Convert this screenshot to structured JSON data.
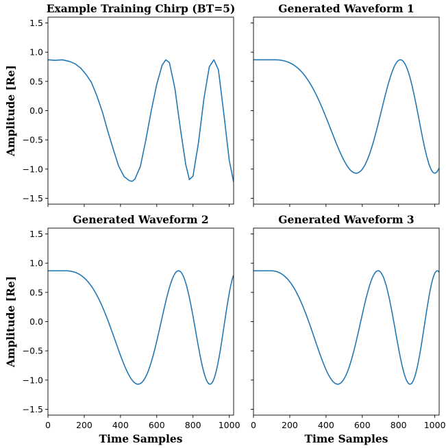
{
  "figure": {
    "sharey": true,
    "sharex": true
  },
  "chart_data": [
    {
      "type": "line",
      "title": "Example Training Chirp (BT=5)",
      "xlabel": "",
      "ylabel": "Amplitude [Re]",
      "xlim": [
        0,
        1024
      ],
      "ylim": [
        -1.6,
        1.6
      ],
      "yticks": [
        -1.5,
        -1.0,
        -0.5,
        0.0,
        0.5,
        1.0,
        1.5
      ],
      "yticklabels": [
        "−1.5",
        "−1.0",
        "−0.5",
        "0.0",
        "0.5",
        "1.0",
        "1.5"
      ],
      "xticks": [
        0,
        200,
        400,
        600,
        800,
        1000
      ],
      "xticklabels": [],
      "show_yticklabels": true,
      "color": "#1f77b4",
      "series": [
        {
          "x": [
            0,
            40,
            80,
            120,
            150,
            180,
            210,
            240,
            270,
            300,
            330,
            360,
            390,
            420,
            450,
            465,
            480,
            510,
            540,
            570,
            600,
            630,
            650,
            670,
            700,
            730,
            760,
            780,
            800,
            830,
            860,
            890,
            915,
            940,
            970,
            1000,
            1024
          ],
          "y": [
            0.87,
            0.86,
            0.87,
            0.84,
            0.8,
            0.73,
            0.62,
            0.48,
            0.25,
            -0.02,
            -0.35,
            -0.66,
            -0.95,
            -1.13,
            -1.2,
            -1.21,
            -1.17,
            -0.95,
            -0.5,
            0.0,
            0.45,
            0.78,
            0.87,
            0.82,
            0.38,
            -0.3,
            -0.92,
            -1.18,
            -1.12,
            -0.55,
            0.2,
            0.75,
            0.87,
            0.7,
            -0.05,
            -0.85,
            -1.22
          ]
        }
      ]
    },
    {
      "type": "line",
      "title": "Generated Waveform 1",
      "xlabel": "",
      "ylabel": "",
      "xlim": [
        0,
        1024
      ],
      "ylim": [
        -1.6,
        1.6
      ],
      "yticks": [
        -1.5,
        -1.0,
        -0.5,
        0.0,
        0.5,
        1.0,
        1.5
      ],
      "yticklabels": [],
      "xticks": [
        0,
        200,
        400,
        600,
        800,
        1000
      ],
      "xticklabels": [],
      "show_yticklabels": false,
      "color": "#1f77b4",
      "chirp": {
        "x_start": 115,
        "k": 0.00027,
        "f0": 0.0005,
        "amp": 0.97,
        "mid": -0.1
      },
      "series": [
        {
          "x": [
            0,
            115
          ],
          "y": [
            0.87,
            0.87
          ]
        }
      ]
    },
    {
      "type": "line",
      "title": "Generated Waveform 2",
      "xlabel": "Time Samples",
      "ylabel": "Amplitude [Re]",
      "xlim": [
        0,
        1024
      ],
      "ylim": [
        -1.6,
        1.6
      ],
      "yticks": [
        -1.5,
        -1.0,
        -0.5,
        0.0,
        0.5,
        1.0,
        1.5
      ],
      "yticklabels": [
        "−1.5",
        "−1.0",
        "−0.5",
        "0.0",
        "0.5",
        "1.0",
        "1.5"
      ],
      "xticks": [
        0,
        200,
        400,
        600,
        800,
        1000
      ],
      "xticklabels": [
        "0",
        "200",
        "400",
        "600",
        "800",
        "1000"
      ],
      "show_yticklabels": true,
      "color": "#1f77b4",
      "chirp": {
        "x_start": 95,
        "k": 0.00032,
        "f0": 0.0006,
        "amp": 0.97,
        "mid": -0.1
      },
      "series": [
        {
          "x": [
            0,
            95
          ],
          "y": [
            0.87,
            0.87
          ]
        }
      ]
    },
    {
      "type": "line",
      "title": "Generated Waveform 3",
      "xlabel": "Time Samples",
      "ylabel": "",
      "xlim": [
        0,
        1024
      ],
      "ylim": [
        -1.6,
        1.6
      ],
      "yticks": [
        -1.5,
        -1.0,
        -0.5,
        0.0,
        0.5,
        1.0,
        1.5
      ],
      "yticklabels": [],
      "xticks": [
        0,
        200,
        400,
        600,
        800,
        1000
      ],
      "xticklabels": [
        "0",
        "200",
        "400",
        "600",
        "800",
        "1000"
      ],
      "show_yticklabels": false,
      "color": "#1f77b4",
      "chirp": {
        "x_start": 95,
        "k": 0.0003,
        "f0": 0.0008,
        "amp": 0.97,
        "mid": -0.1
      },
      "series": [
        {
          "x": [
            0,
            95
          ],
          "y": [
            0.87,
            0.87
          ]
        }
      ]
    }
  ]
}
